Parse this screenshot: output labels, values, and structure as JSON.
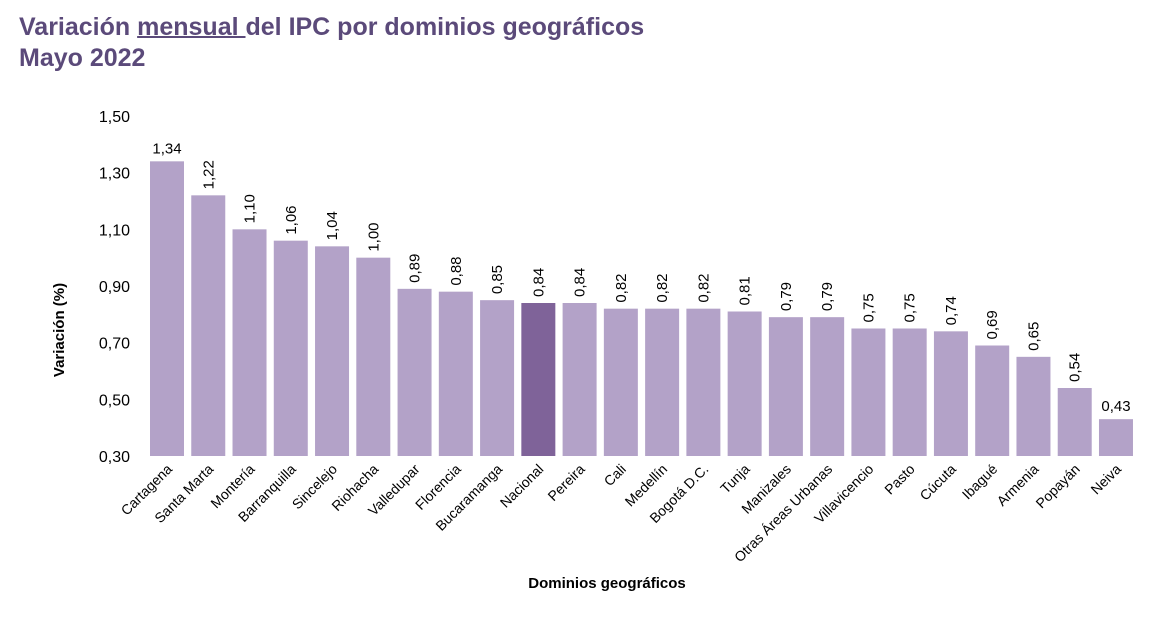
{
  "title": {
    "part1": "Variación ",
    "underlined": "mensual ",
    "part2": "del IPC por dominios geográficos",
    "line2": "Mayo 2022"
  },
  "chart_data": {
    "type": "bar",
    "xlabel": "Dominios geográficos",
    "ylabel": "Variación (%)",
    "ylim": [
      0.3,
      1.5
    ],
    "yticks": [
      "0,30",
      "0,50",
      "0,70",
      "0,90",
      "1,10",
      "1,30",
      "1,50"
    ],
    "grid": false,
    "categories": [
      "Cartagena",
      "Santa Marta",
      "Montería",
      "Barranquilla",
      "Sincelejo",
      "Riohacha",
      "Valledupar",
      "Florencia",
      "Bucaramanga",
      "Nacional",
      "Pereira",
      "Cali",
      "Medellín",
      "Bogotá D.C.",
      "Tunja",
      "Manizales",
      "Otras Áreas Urbanas",
      "Villavicencio",
      "Pasto",
      "Cúcuta",
      "Ibagué",
      "Armenia",
      "Popayán",
      "Neiva"
    ],
    "values": [
      1.34,
      1.22,
      1.1,
      1.06,
      1.04,
      1.0,
      0.89,
      0.88,
      0.85,
      0.84,
      0.84,
      0.82,
      0.82,
      0.82,
      0.81,
      0.79,
      0.79,
      0.75,
      0.75,
      0.74,
      0.69,
      0.65,
      0.54,
      0.43
    ],
    "highlight": "Nacional",
    "colors": {
      "bar": "#b3a2c8",
      "highlight": "#7f6399",
      "title": "#5b4a7a"
    }
  }
}
